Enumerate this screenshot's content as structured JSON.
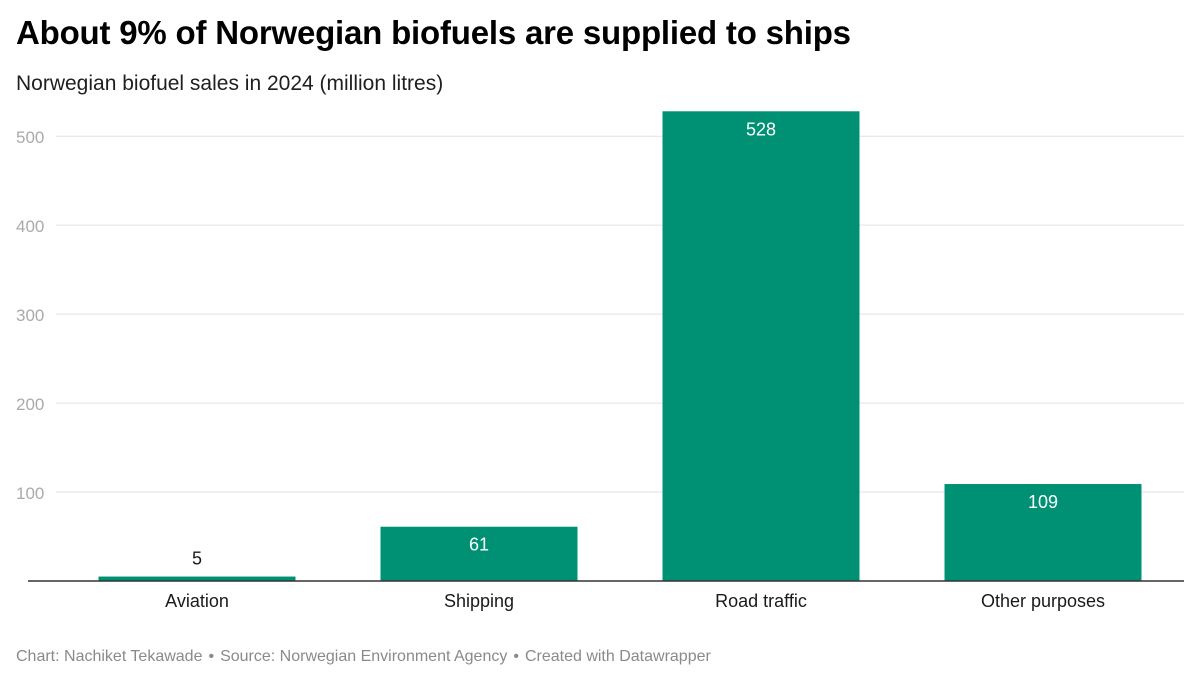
{
  "title": "About 9% of Norwegian biofuels are supplied to ships",
  "subtitle": "Norwegian biofuel sales in 2024 (million litres)",
  "footer": {
    "chart_credit": "Chart: Nachiket Tekawade",
    "source": "Source: Norwegian Environment Agency",
    "created_with": "Created with Datawrapper",
    "separator": "•"
  },
  "colors": {
    "bar": "#009175",
    "grid": "#e2e2e2",
    "axis": "#333333",
    "tick_label": "#aaaaaa",
    "label_inside": "#ffffff",
    "label_outside": "#1a1a1a"
  },
  "chart_data": {
    "type": "bar",
    "title": "About 9% of Norwegian biofuels are supplied to ships",
    "subtitle": "Norwegian biofuel sales in 2024 (million litres)",
    "categories": [
      "Aviation",
      "Shipping",
      "Road traffic",
      "Other purposes"
    ],
    "values": [
      5,
      61,
      528,
      109
    ],
    "data_labels": [
      "5",
      "61",
      "528",
      "109"
    ],
    "xlabel": "",
    "ylabel": "",
    "ylim": [
      0,
      528
    ],
    "yticks": [
      100,
      200,
      300,
      400,
      500
    ],
    "ytick_labels": [
      "100",
      "200",
      "300",
      "400",
      "500"
    ],
    "grid": true,
    "legend": "none"
  }
}
